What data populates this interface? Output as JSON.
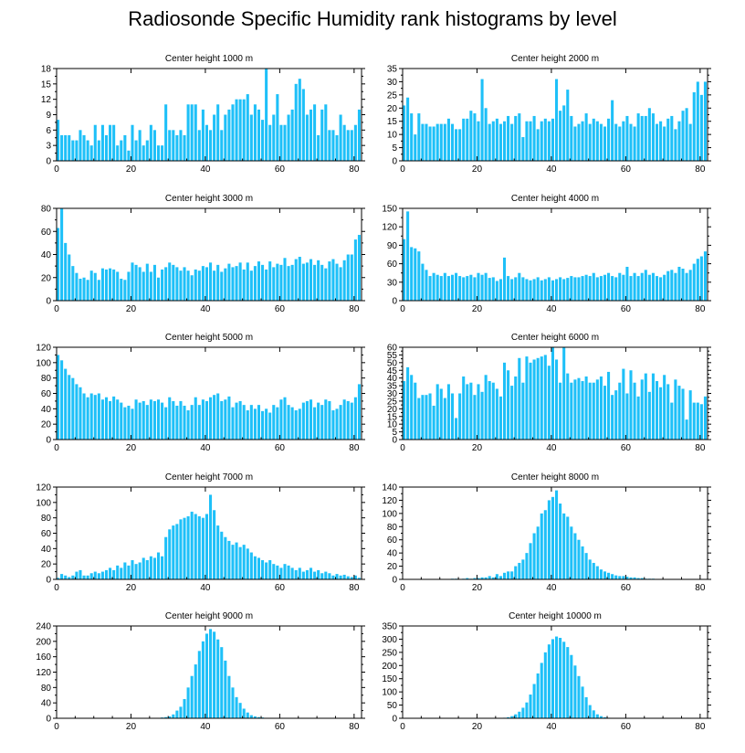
{
  "title": "Radiosonde Specific Humidity rank histograms by level",
  "bar_color": "#1ec0f8",
  "chart_data": [
    {
      "type": "bar",
      "title": "Center height 1000 m",
      "xlim": [
        0,
        82
      ],
      "ylim": [
        0,
        18
      ],
      "xticks": [
        0,
        20,
        40,
        60,
        80
      ],
      "yticks": [
        0,
        3,
        6,
        9,
        12,
        15,
        18
      ],
      "values": [
        8,
        5,
        5,
        5,
        4,
        4,
        6,
        5,
        4,
        3,
        7,
        4,
        7,
        5,
        7,
        7,
        3,
        4,
        5,
        2,
        7,
        4,
        6,
        3,
        4,
        7,
        6,
        3,
        3,
        11,
        6,
        6,
        5,
        6,
        5,
        11,
        11,
        11,
        6,
        10,
        7,
        6,
        9,
        11,
        6,
        9,
        10,
        11,
        12,
        12,
        12,
        13,
        9,
        11,
        10,
        8,
        18,
        7,
        9,
        13,
        7,
        7,
        9,
        10,
        15,
        16,
        14,
        9,
        10,
        11,
        5,
        10,
        11,
        6,
        6,
        5,
        9,
        7,
        6,
        6,
        7,
        10
      ]
    },
    {
      "type": "bar",
      "title": "Center height 2000 m",
      "xlim": [
        0,
        82
      ],
      "ylim": [
        0,
        35
      ],
      "xticks": [
        0,
        20,
        40,
        60,
        80
      ],
      "yticks": [
        0,
        5,
        10,
        15,
        20,
        25,
        30,
        35
      ],
      "values": [
        21,
        24,
        18,
        10,
        18,
        14,
        14,
        13,
        13,
        14,
        14,
        14,
        16,
        14,
        12,
        12,
        16,
        16,
        19,
        18,
        15,
        31,
        20,
        14,
        15,
        16,
        14,
        15,
        17,
        14,
        17,
        18,
        9,
        15,
        15,
        17,
        12,
        15,
        16,
        15,
        16,
        31,
        19,
        21,
        27,
        17,
        13,
        14,
        15,
        18,
        14,
        16,
        15,
        14,
        13,
        16,
        23,
        14,
        13,
        15,
        17,
        14,
        13,
        18,
        17,
        17,
        20,
        18,
        14,
        15,
        13,
        16,
        17,
        12,
        15,
        19,
        20,
        14,
        26,
        30,
        25,
        30
      ]
    },
    {
      "type": "bar",
      "title": "Center height 3000 m",
      "xlim": [
        0,
        82
      ],
      "ylim": [
        0,
        80
      ],
      "xticks": [
        0,
        20,
        40,
        60,
        80
      ],
      "yticks": [
        0,
        20,
        40,
        60,
        80
      ],
      "values": [
        63,
        80,
        50,
        40,
        30,
        24,
        19,
        20,
        18,
        26,
        24,
        18,
        28,
        27,
        28,
        27,
        25,
        19,
        18,
        25,
        33,
        31,
        29,
        25,
        32,
        25,
        31,
        20,
        27,
        29,
        33,
        31,
        29,
        26,
        29,
        26,
        22,
        27,
        26,
        30,
        29,
        33,
        26,
        31,
        25,
        28,
        32,
        29,
        30,
        33,
        27,
        33,
        26,
        30,
        34,
        31,
        27,
        34,
        29,
        32,
        31,
        37,
        30,
        31,
        36,
        38,
        32,
        33,
        36,
        31,
        35,
        31,
        28,
        34,
        36,
        32,
        29,
        35,
        40,
        40,
        53,
        57
      ]
    },
    {
      "type": "bar",
      "title": "Center height 4000 m",
      "xlim": [
        0,
        82
      ],
      "ylim": [
        0,
        150
      ],
      "xticks": [
        0,
        20,
        40,
        60,
        80
      ],
      "yticks": [
        0,
        30,
        60,
        90,
        120,
        150
      ],
      "values": [
        100,
        145,
        87,
        85,
        80,
        60,
        50,
        40,
        45,
        42,
        40,
        45,
        40,
        42,
        45,
        40,
        38,
        40,
        42,
        38,
        45,
        42,
        45,
        37,
        38,
        32,
        35,
        70,
        40,
        35,
        38,
        45,
        38,
        35,
        33,
        35,
        38,
        33,
        35,
        38,
        33,
        35,
        38,
        35,
        37,
        40,
        38,
        38,
        40,
        42,
        40,
        45,
        38,
        40,
        42,
        45,
        40,
        38,
        45,
        42,
        55,
        40,
        45,
        40,
        45,
        50,
        42,
        45,
        40,
        38,
        42,
        48,
        50,
        45,
        55,
        52,
        45,
        50,
        60,
        68,
        72,
        80
      ]
    },
    {
      "type": "bar",
      "title": "Center height 5000 m",
      "xlim": [
        0,
        82
      ],
      "ylim": [
        0,
        120
      ],
      "xticks": [
        0,
        20,
        40,
        60,
        80
      ],
      "yticks": [
        0,
        20,
        40,
        60,
        80,
        100,
        120
      ],
      "values": [
        110,
        103,
        92,
        84,
        80,
        72,
        68,
        60,
        55,
        60,
        58,
        60,
        52,
        55,
        50,
        56,
        52,
        48,
        42,
        44,
        40,
        52,
        48,
        50,
        45,
        52,
        50,
        52,
        48,
        42,
        55,
        50,
        44,
        50,
        44,
        38,
        45,
        55,
        45,
        52,
        50,
        55,
        58,
        60,
        50,
        52,
        56,
        42,
        48,
        50,
        45,
        38,
        45,
        40,
        45,
        37,
        40,
        35,
        45,
        42,
        52,
        55,
        45,
        42,
        38,
        40,
        48,
        50,
        52,
        42,
        48,
        45,
        52,
        50,
        38,
        40,
        45,
        52,
        50,
        48,
        55,
        72
      ]
    },
    {
      "type": "bar",
      "title": "Center height 6000 m",
      "xlim": [
        0,
        82
      ],
      "ylim": [
        0,
        60
      ],
      "xticks": [
        0,
        20,
        40,
        60,
        80
      ],
      "yticks": [
        0,
        5,
        10,
        15,
        20,
        25,
        30,
        35,
        40,
        45,
        50,
        55,
        60
      ],
      "values": [
        38,
        47,
        42,
        37,
        27,
        29,
        29,
        30,
        22,
        36,
        33,
        27,
        36,
        30,
        14,
        30,
        41,
        36,
        37,
        29,
        36,
        31,
        42,
        38,
        37,
        33,
        28,
        50,
        45,
        35,
        41,
        53,
        37,
        54,
        50,
        52,
        53,
        54,
        55,
        48,
        61,
        52,
        37,
        61,
        43,
        37,
        39,
        40,
        38,
        41,
        37,
        37,
        39,
        41,
        35,
        44,
        29,
        32,
        37,
        46,
        30,
        45,
        37,
        28,
        39,
        43,
        31,
        43,
        38,
        34,
        42,
        36,
        24,
        39,
        35,
        33,
        13,
        32,
        24,
        24,
        23,
        28
      ]
    },
    {
      "type": "bar",
      "title": "Center height 7000 m",
      "xlim": [
        0,
        82
      ],
      "ylim": [
        0,
        120
      ],
      "xticks": [
        0,
        20,
        40,
        60,
        80
      ],
      "yticks": [
        0,
        20,
        40,
        60,
        80,
        100,
        120
      ],
      "values": [
        2,
        7,
        5,
        3,
        5,
        10,
        12,
        5,
        5,
        8,
        10,
        8,
        10,
        12,
        15,
        12,
        18,
        15,
        22,
        18,
        25,
        20,
        22,
        28,
        25,
        30,
        28,
        35,
        30,
        55,
        65,
        70,
        72,
        78,
        80,
        82,
        88,
        85,
        82,
        80,
        85,
        110,
        90,
        70,
        62,
        55,
        50,
        45,
        48,
        42,
        45,
        40,
        35,
        30,
        28,
        25,
        22,
        25,
        20,
        18,
        15,
        20,
        18,
        15,
        12,
        15,
        10,
        12,
        15,
        10,
        12,
        8,
        10,
        8,
        5,
        7,
        5,
        6,
        4,
        3,
        5,
        2
      ]
    },
    {
      "type": "bar",
      "title": "Center height 8000 m",
      "xlim": [
        0,
        82
      ],
      "ylim": [
        0,
        140
      ],
      "xticks": [
        0,
        20,
        40,
        60,
        80
      ],
      "yticks": [
        0,
        20,
        40,
        60,
        80,
        100,
        120,
        140
      ],
      "values": [
        0,
        0,
        0,
        0,
        0,
        0,
        0,
        0,
        0,
        0,
        0,
        0,
        0,
        1,
        1,
        0,
        1,
        2,
        1,
        2,
        2,
        3,
        3,
        5,
        3,
        8,
        5,
        10,
        12,
        12,
        20,
        25,
        30,
        40,
        55,
        70,
        80,
        100,
        105,
        120,
        125,
        135,
        115,
        100,
        95,
        80,
        70,
        60,
        50,
        40,
        30,
        25,
        20,
        15,
        12,
        10,
        8,
        6,
        5,
        5,
        4,
        3,
        3,
        2,
        2,
        1,
        1,
        1,
        0,
        0,
        0,
        0,
        0,
        0,
        0,
        0,
        0,
        0,
        0,
        0,
        0,
        0
      ]
    },
    {
      "type": "bar",
      "title": "Center height 9000 m",
      "xlim": [
        0,
        82
      ],
      "ylim": [
        0,
        240
      ],
      "xticks": [
        0,
        20,
        40,
        60,
        80
      ],
      "yticks": [
        0,
        40,
        80,
        120,
        160,
        200,
        240
      ],
      "values": [
        0,
        0,
        0,
        0,
        0,
        0,
        0,
        0,
        0,
        0,
        0,
        0,
        0,
        0,
        0,
        0,
        0,
        0,
        0,
        0,
        0,
        0,
        0,
        0,
        0,
        0,
        1,
        1,
        2,
        3,
        5,
        10,
        20,
        30,
        50,
        80,
        110,
        140,
        175,
        200,
        220,
        232,
        225,
        205,
        185,
        150,
        110,
        80,
        55,
        40,
        25,
        15,
        8,
        5,
        3,
        2,
        1,
        1,
        0,
        0,
        0,
        0,
        0,
        0,
        0,
        0,
        0,
        0,
        0,
        0,
        0,
        0,
        0,
        0,
        0,
        0,
        0,
        0,
        0,
        0,
        0,
        0
      ]
    },
    {
      "type": "bar",
      "title": "Center height 10000 m",
      "xlim": [
        0,
        82
      ],
      "ylim": [
        0,
        350
      ],
      "xticks": [
        0,
        20,
        40,
        60,
        80
      ],
      "yticks": [
        0,
        50,
        100,
        150,
        200,
        250,
        300,
        350
      ],
      "values": [
        0,
        0,
        0,
        0,
        0,
        0,
        0,
        0,
        0,
        0,
        0,
        0,
        0,
        0,
        0,
        0,
        0,
        0,
        0,
        0,
        0,
        0,
        0,
        0,
        0,
        0,
        1,
        2,
        4,
        8,
        15,
        25,
        40,
        60,
        90,
        130,
        170,
        210,
        250,
        280,
        300,
        310,
        305,
        290,
        270,
        240,
        200,
        160,
        120,
        80,
        50,
        30,
        15,
        8,
        4,
        2,
        1,
        0,
        0,
        0,
        0,
        0,
        0,
        0,
        0,
        0,
        0,
        0,
        0,
        0,
        0,
        0,
        0,
        0,
        0,
        0,
        0,
        0,
        0,
        0,
        0,
        0
      ]
    }
  ]
}
